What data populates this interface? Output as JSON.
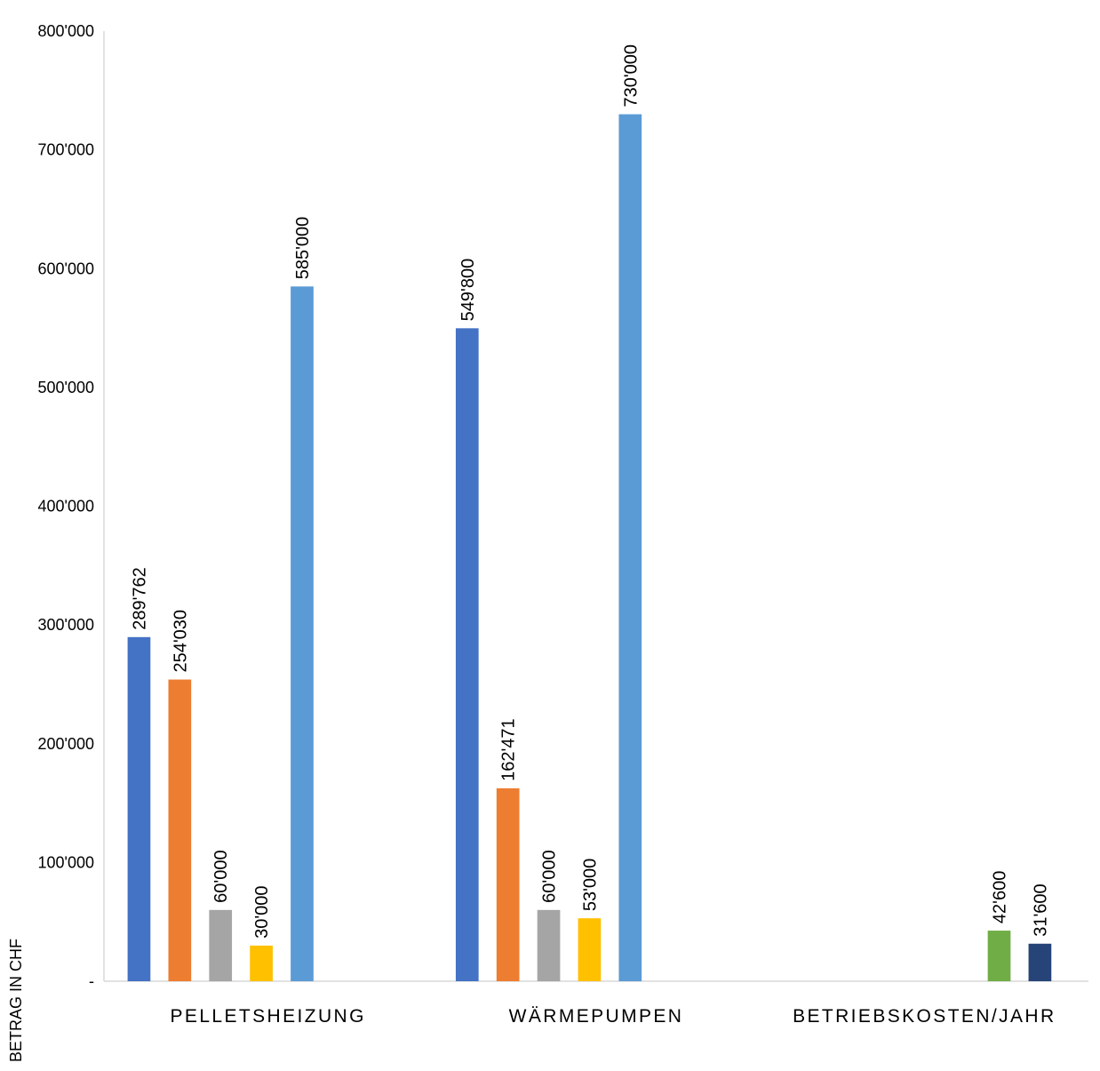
{
  "chart_data": {
    "type": "bar",
    "categories": [
      "PELLETSHEIZUNG",
      "WÄRMEPUMPEN",
      "BETRIEBSKOSTEN/JAHR"
    ],
    "ylabel": "BETRAG IN CHF",
    "ylim": [
      0,
      800000
    ],
    "yticks": [
      0,
      100000,
      200000,
      300000,
      400000,
      500000,
      600000,
      700000,
      800000
    ],
    "ytick_labels": [
      "-",
      "100'000",
      "200'000",
      "300'000",
      "400'000",
      "500'000",
      "600'000",
      "700'000",
      "800'000"
    ],
    "grid": false,
    "legend": "none",
    "series": [
      {
        "color": "#4472C4",
        "values": [
          289762,
          549800,
          null
        ],
        "labels": [
          "289'762",
          "549'800",
          null
        ]
      },
      {
        "color": "#ED7D31",
        "values": [
          254030,
          162471,
          null
        ],
        "labels": [
          "254'030",
          "162'471",
          null
        ]
      },
      {
        "color": "#A5A5A5",
        "values": [
          60000,
          60000,
          null
        ],
        "labels": [
          "60'000",
          "60'000",
          null
        ]
      },
      {
        "color": "#FFC000",
        "values": [
          30000,
          53000,
          null
        ],
        "labels": [
          "30'000",
          "53'000",
          null
        ]
      },
      {
        "color": "#5B9BD5",
        "values": [
          585000,
          730000,
          null
        ],
        "labels": [
          "585'000",
          "730'000",
          null
        ]
      },
      {
        "color": "#70AD47",
        "values": [
          null,
          null,
          42600
        ],
        "labels": [
          null,
          null,
          "42'600"
        ]
      },
      {
        "color": "#264478",
        "values": [
          null,
          null,
          31600
        ],
        "labels": [
          null,
          null,
          "31'600"
        ]
      }
    ]
  }
}
